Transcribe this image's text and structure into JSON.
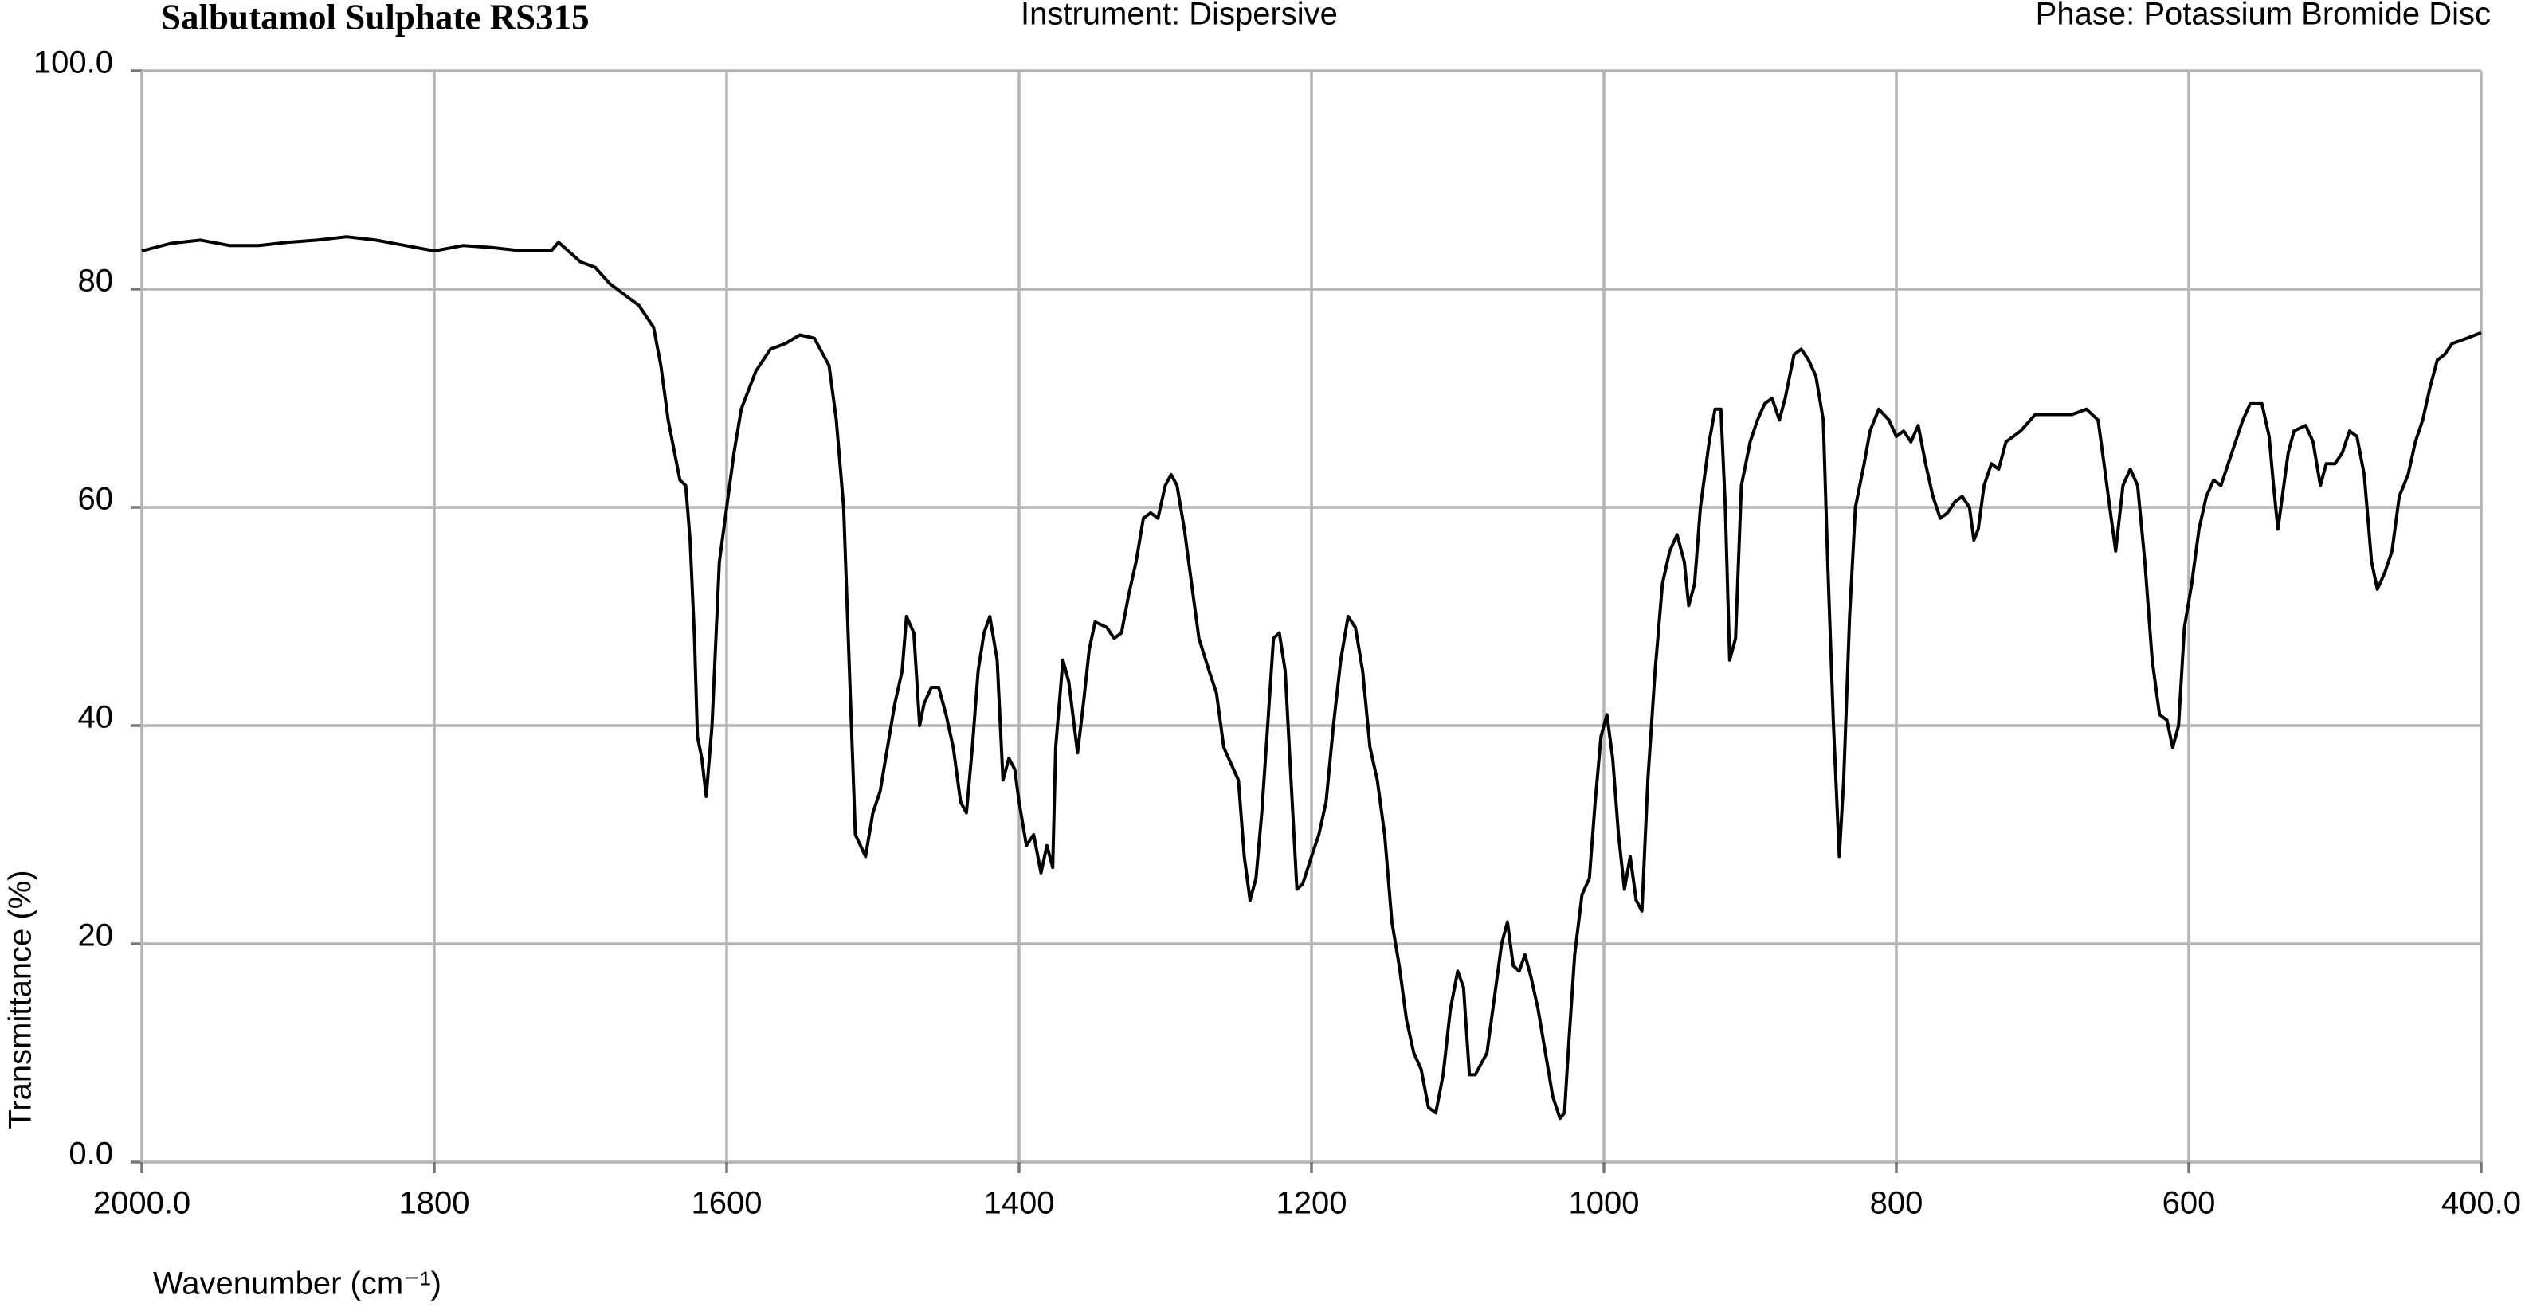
{
  "chart_data": {
    "type": "line",
    "title": "Salbutamol Sulphate RS315",
    "instrument": "Instrument:  Dispersive",
    "phase": "Phase:  Potassium Bromide Disc",
    "xlabel": "Wavenumber (cm⁻¹)",
    "ylabel": "Transmittance (%)",
    "xlim": [
      2000,
      400
    ],
    "ylim": [
      0,
      100
    ],
    "xticks": [
      {
        "value": 2000,
        "label": "2000.0"
      },
      1800,
      1600,
      1400,
      1200,
      1000,
      800,
      600,
      {
        "value": 400,
        "label": "400.0"
      }
    ],
    "yticks": [
      {
        "value": 0,
        "label": "0.0"
      },
      20,
      40,
      60,
      80,
      {
        "value": 100,
        "label": "100.0"
      }
    ],
    "grid": true,
    "color": "#000000",
    "x": [
      2000,
      1980,
      1960,
      1940,
      1920,
      1900,
      1880,
      1860,
      1840,
      1820,
      1800,
      1780,
      1760,
      1740,
      1720,
      1715,
      1700,
      1690,
      1680,
      1670,
      1660,
      1650,
      1645,
      1640,
      1632,
      1628,
      1625,
      1622,
      1620,
      1617,
      1614,
      1610,
      1605,
      1600,
      1595,
      1590,
      1580,
      1570,
      1560,
      1550,
      1540,
      1530,
      1525,
      1520,
      1516,
      1512,
      1505,
      1500,
      1495,
      1490,
      1485,
      1480,
      1477,
      1472,
      1468,
      1465,
      1460,
      1455,
      1450,
      1445,
      1440,
      1436,
      1432,
      1428,
      1424,
      1420,
      1415,
      1411,
      1407,
      1403,
      1400,
      1395,
      1390,
      1385,
      1381,
      1377,
      1375,
      1370,
      1366,
      1360,
      1356,
      1352,
      1348,
      1340,
      1335,
      1330,
      1325,
      1320,
      1315,
      1310,
      1305,
      1300,
      1296,
      1292,
      1287,
      1282,
      1277,
      1270,
      1265,
      1260,
      1255,
      1250,
      1246,
      1242,
      1238,
      1234,
      1230,
      1226,
      1222,
      1218,
      1214,
      1210,
      1206,
      1200,
      1195,
      1190,
      1185,
      1180,
      1175,
      1170,
      1165,
      1160,
      1155,
      1150,
      1145,
      1140,
      1135,
      1130,
      1125,
      1120,
      1115,
      1110,
      1105,
      1100,
      1096,
      1092,
      1088,
      1084,
      1080,
      1075,
      1070,
      1066,
      1062,
      1058,
      1054,
      1050,
      1045,
      1040,
      1035,
      1030,
      1027,
      1024,
      1020,
      1015,
      1010,
      1006,
      1002,
      998,
      994,
      990,
      986,
      982,
      978,
      974,
      970,
      965,
      960,
      955,
      950,
      945,
      942,
      938,
      934,
      928,
      924,
      920,
      917,
      914,
      910,
      906,
      900,
      895,
      890,
      885,
      880,
      876,
      870,
      865,
      860,
      855,
      850,
      847,
      843,
      839,
      836,
      832,
      828,
      822,
      818,
      812,
      805,
      800,
      795,
      790,
      785,
      780,
      775,
      770,
      765,
      760,
      755,
      750,
      747,
      744,
      740,
      735,
      730,
      725,
      715,
      705,
      690,
      680,
      670,
      662,
      658,
      653,
      650,
      645,
      640,
      635,
      630,
      625,
      620,
      615,
      611,
      607,
      603,
      598,
      593,
      588,
      583,
      578,
      573,
      568,
      563,
      558,
      550,
      545,
      542,
      539,
      536,
      532,
      528,
      520,
      515,
      510,
      506,
      500,
      495,
      490,
      485,
      480,
      475,
      471,
      466,
      461,
      456,
      450,
      445,
      440,
      435,
      430,
      425,
      420,
      410,
      400
    ],
    "values": [
      83.5,
      84.2,
      84.5,
      84.0,
      84.0,
      84.3,
      84.5,
      84.8,
      84.5,
      84.0,
      83.5,
      84.0,
      83.8,
      83.5,
      83.5,
      84.3,
      82.5,
      82.0,
      80.5,
      79.5,
      78.5,
      76.5,
      73,
      68,
      62.5,
      62,
      57,
      48,
      39,
      37,
      33.5,
      40,
      55,
      60,
      65,
      69,
      72.5,
      74.5,
      75,
      75.8,
      75.5,
      73,
      68,
      60,
      45,
      30,
      28,
      32,
      34,
      38,
      42,
      45,
      50,
      48.5,
      40,
      42,
      43.5,
      43.5,
      41,
      38,
      33,
      32,
      38,
      45,
      48.5,
      50,
      46,
      35,
      37,
      36,
      33,
      29,
      30,
      26.5,
      29,
      27,
      38,
      46,
      44,
      37.5,
      42,
      47,
      49.5,
      49,
      48,
      48.5,
      52,
      55,
      59,
      59.5,
      59,
      62,
      63,
      62,
      58,
      53,
      48,
      45,
      43,
      38,
      36.5,
      35,
      28,
      24,
      26,
      32,
      40,
      48,
      48.5,
      45,
      35,
      25,
      25.5,
      28,
      30,
      33,
      40,
      46,
      50,
      49,
      45,
      38,
      35,
      30,
      22,
      18,
      13,
      10,
      8.5,
      5,
      4.5,
      8,
      14,
      17.5,
      16,
      8,
      8,
      9,
      10,
      15,
      20,
      22,
      18,
      17.5,
      19,
      17,
      14,
      10,
      6,
      4,
      4.5,
      11,
      19,
      24.5,
      26,
      33,
      39,
      41,
      37,
      30,
      25,
      28,
      24,
      23,
      35,
      45,
      53,
      56,
      57.5,
      55,
      51,
      53,
      60,
      66,
      69,
      69,
      60,
      46,
      48,
      62,
      66,
      68,
      69.5,
      70,
      68,
      70,
      74,
      74.5,
      73.5,
      72,
      68,
      55,
      40,
      28,
      35,
      50,
      60,
      64,
      67,
      69,
      68,
      66.5,
      67,
      66,
      67.5,
      64,
      61,
      59,
      59.5,
      60.5,
      61,
      60,
      57,
      58,
      62,
      64,
      63.5,
      66,
      67,
      68.5,
      68.5,
      68.5,
      69,
      68,
      64,
      59,
      56,
      62,
      63.5,
      62,
      55,
      46,
      41,
      40.5,
      38,
      40,
      49,
      53,
      58,
      61,
      62.5,
      62,
      64,
      66,
      68,
      69.5,
      69.5,
      66.5,
      62,
      58,
      61,
      65,
      67,
      67.5,
      66,
      62,
      64,
      64,
      65,
      67,
      66.5,
      63,
      55,
      52.5,
      54,
      56,
      61,
      63,
      66,
      68,
      71,
      73.5,
      74,
      75,
      75.5,
      76
    ]
  }
}
